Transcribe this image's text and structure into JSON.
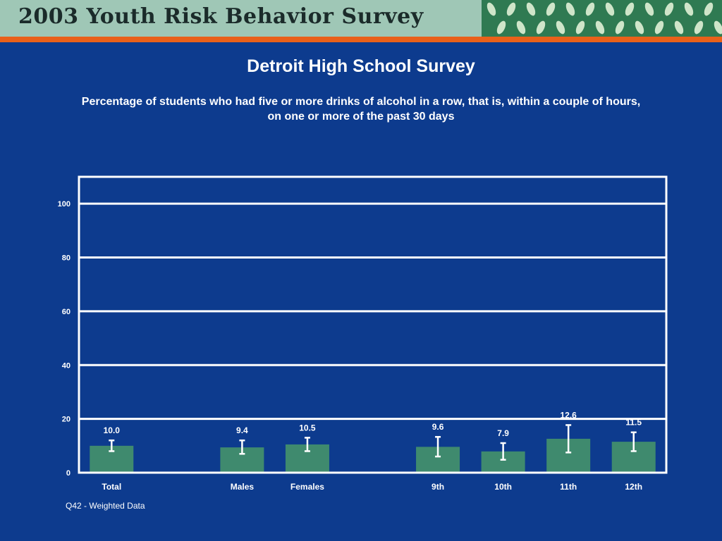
{
  "header": {
    "banner_title": "2003 Youth Risk Behavior Survey"
  },
  "colors": {
    "background": "#0d3b8e",
    "bar": "#3f8a6e",
    "banner": "#9fc7b6",
    "accent": "#e9611a",
    "text": "#ffffff"
  },
  "chart_data": {
    "type": "bar",
    "title": "Detroit High School Survey",
    "subtitle": "Percentage of students who had five or more drinks of alcohol in a row, that is, within a couple of hours, on one or more of the past 30 days",
    "categories": [
      "Total",
      "Males",
      "Females",
      "9th",
      "10th",
      "11th",
      "12th"
    ],
    "values": [
      10.0,
      9.4,
      10.5,
      9.6,
      7.9,
      12.6,
      11.5
    ],
    "value_labels": [
      "10.0",
      "9.4",
      "10.5",
      "9.6",
      "7.9",
      "12.6",
      "11.5"
    ],
    "error_low": [
      8.0,
      7.0,
      8.0,
      6.0,
      4.8,
      7.5,
      8.0
    ],
    "error_high": [
      12.0,
      12.0,
      13.0,
      13.3,
      11.0,
      17.7,
      15.0
    ],
    "ylim": [
      0,
      110
    ],
    "yticks": [
      0,
      20,
      40,
      60,
      80,
      100
    ],
    "grid": true,
    "xlabel": "",
    "ylabel": ""
  },
  "footnote": "Q42 - Weighted Data"
}
